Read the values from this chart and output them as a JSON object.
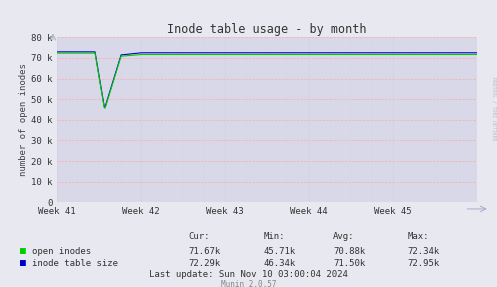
{
  "title": "Inode table usage - by month",
  "ylabel": "number of open inodes",
  "bg_color": "#e8e8f0",
  "plot_bg_color": "#d8d8e8",
  "grid_color_h": "#ffaaaa",
  "grid_color_v": "#ccccdd",
  "yticks": [
    0,
    10000,
    20000,
    30000,
    40000,
    50000,
    60000,
    70000,
    80000
  ],
  "ytick_labels": [
    "0",
    "10 k",
    "20 k",
    "30 k",
    "40 k",
    "50 k",
    "60 k",
    "70 k",
    "80 k"
  ],
  "xtick_positions": [
    0,
    1,
    2,
    3,
    4
  ],
  "xtick_labels": [
    "Week 41",
    "Week 42",
    "Week 43",
    "Week 44",
    "Week 45"
  ],
  "ymax": 80000,
  "ymin": 0,
  "open_inodes_color": "#00cc00",
  "inode_table_color": "#0000cc",
  "legend_labels": [
    "open inodes",
    "inode table size"
  ],
  "stats_header": [
    "Cur:",
    "Min:",
    "Avg:",
    "Max:"
  ],
  "stats_open": [
    "71.67k",
    "45.71k",
    "70.88k",
    "72.34k"
  ],
  "stats_inode": [
    "72.29k",
    "46.34k",
    "71.50k",
    "72.95k"
  ],
  "last_update": "Last update: Sun Nov 10 03:00:04 2024",
  "munin_version": "Munin 2.0.57",
  "watermark": "RRDTOOL / TOBI OETIKER"
}
